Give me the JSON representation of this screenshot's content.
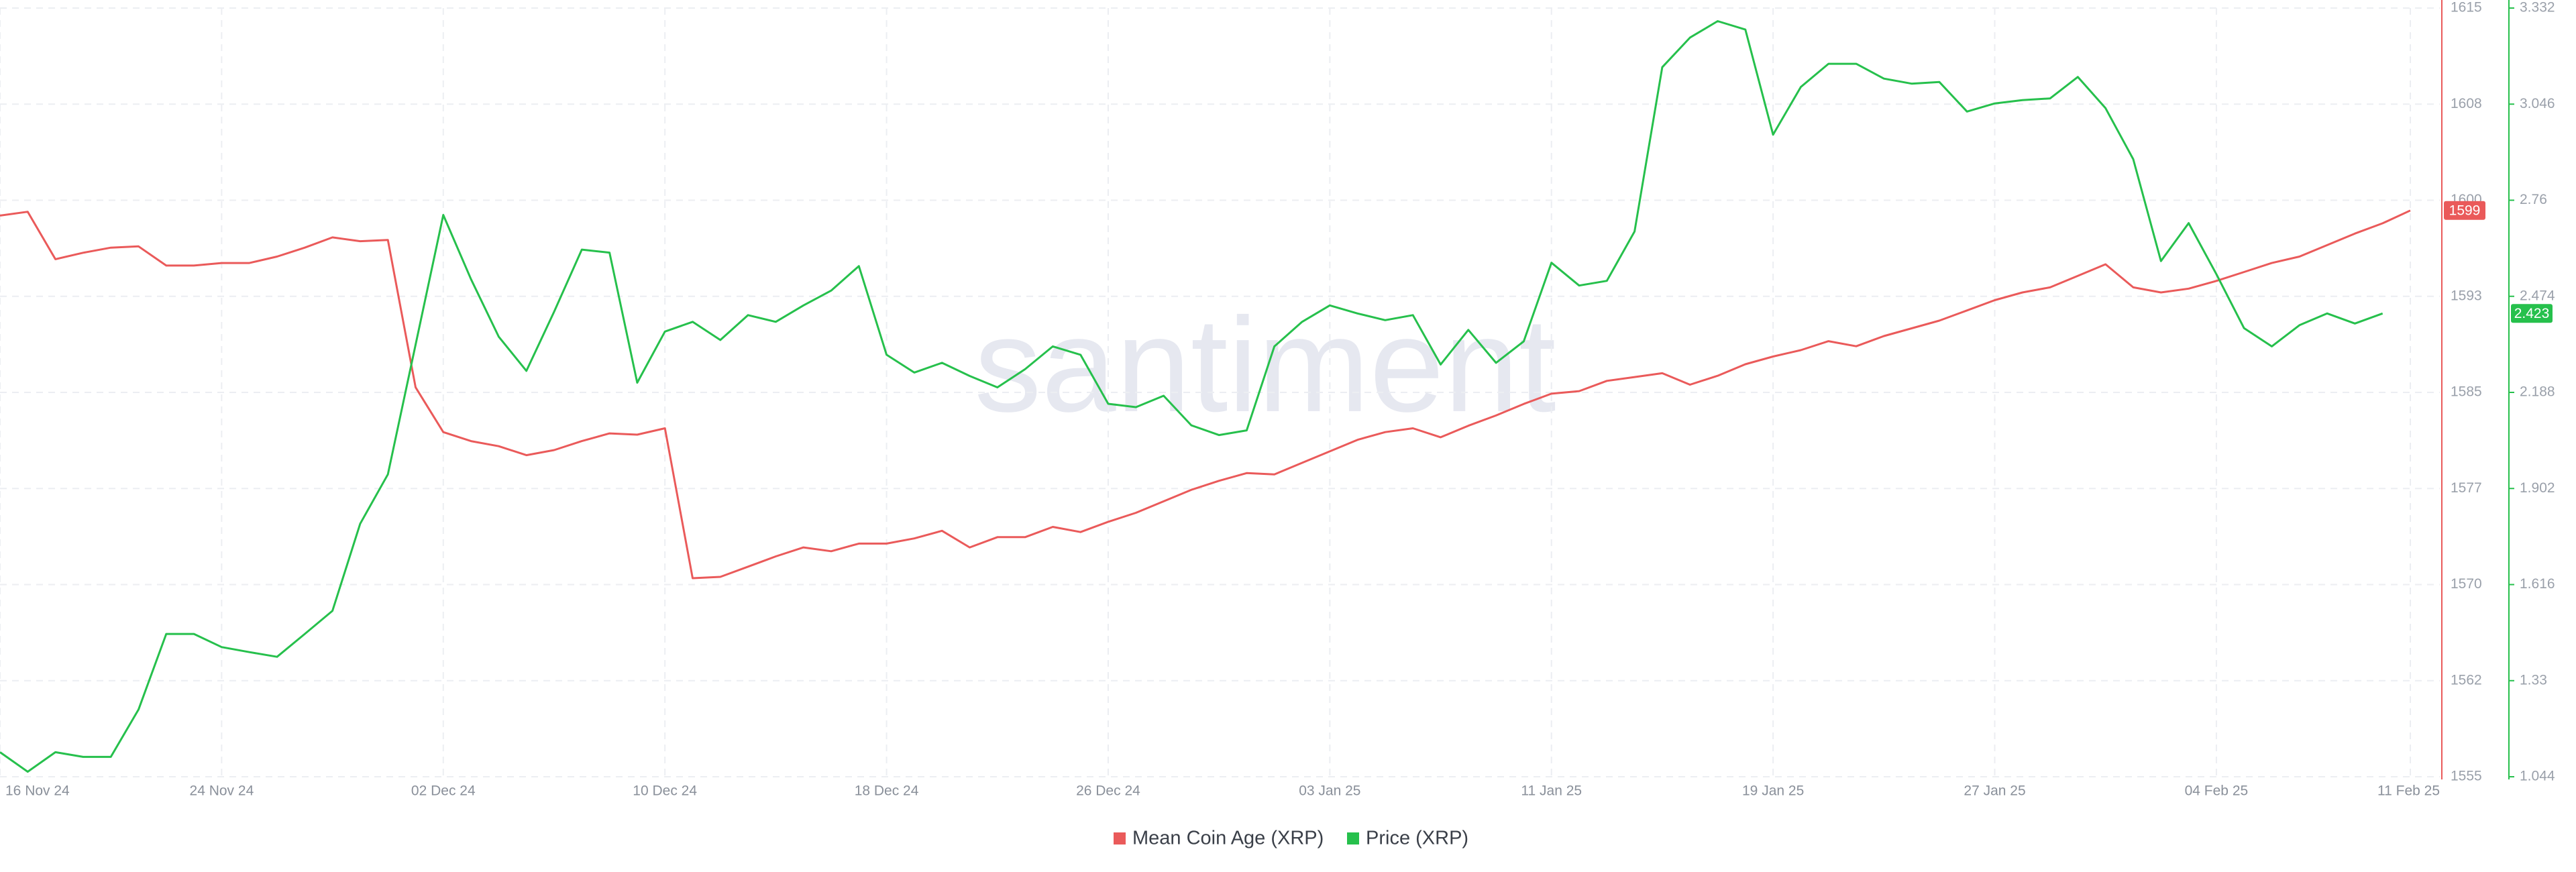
{
  "chart_data": {
    "type": "line",
    "watermark": "santiment",
    "categories": [
      "16 Nov 24",
      null,
      null,
      null,
      null,
      null,
      null,
      null,
      "24 Nov 24",
      null,
      null,
      null,
      null,
      null,
      null,
      null,
      "02 Dec 24",
      null,
      null,
      null,
      null,
      null,
      null,
      null,
      "10 Dec 24",
      null,
      null,
      null,
      null,
      null,
      null,
      null,
      "18 Dec 24",
      null,
      null,
      null,
      null,
      null,
      null,
      null,
      "26 Dec 24",
      null,
      null,
      null,
      null,
      null,
      null,
      null,
      "03 Jan 25",
      null,
      null,
      null,
      null,
      null,
      null,
      null,
      "11 Jan 25",
      null,
      null,
      null,
      null,
      null,
      null,
      null,
      "19 Jan 25",
      null,
      null,
      null,
      null,
      null,
      null,
      null,
      "27 Jan 25",
      null,
      null,
      null,
      null,
      null,
      null,
      null,
      "04 Feb 25",
      null,
      null,
      null,
      null,
      null,
      null,
      "11 Feb 25"
    ],
    "series": [
      {
        "name": "Mean Coin Age (XRP)",
        "color": "#ea5a5a",
        "axis": "y",
        "end_label": "1599",
        "values": [
          1598.8,
          1599.1,
          1595.4,
          1595.9,
          1596.3,
          1596.4,
          1594.9,
          1594.9,
          1595.1,
          1595.1,
          1595.6,
          1596.3,
          1597.1,
          1596.8,
          1596.9,
          1585.4,
          1581.9,
          1581.2,
          1580.8,
          1580.1,
          1580.5,
          1581.2,
          1581.8,
          1581.7,
          1582.2,
          1570.5,
          1570.6,
          1571.4,
          1572.2,
          1572.9,
          1572.6,
          1573.2,
          1573.2,
          1573.6,
          1574.2,
          1572.9,
          1573.7,
          1573.7,
          1574.5,
          1574.1,
          1574.9,
          1575.6,
          1576.5,
          1577.4,
          1578.1,
          1578.7,
          1578.6,
          1579.5,
          1580.4,
          1581.3,
          1581.9,
          1582.2,
          1581.5,
          1582.4,
          1583.2,
          1584.1,
          1584.9,
          1585.1,
          1585.9,
          1586.2,
          1586.5,
          1585.6,
          1586.3,
          1587.2,
          1587.8,
          1588.3,
          1589.0,
          1588.6,
          1589.4,
          1590.0,
          1590.6,
          1591.4,
          1592.2,
          1592.8,
          1593.2,
          1594.1,
          1595.0,
          1593.2,
          1592.8,
          1593.1,
          1593.7,
          1594.4,
          1595.1,
          1595.6,
          1596.5,
          1597.4,
          1598.2,
          1599.2
        ]
      },
      {
        "name": "Price (XRP)",
        "color": "#26c04c",
        "axis": "y2",
        "end_label": "2.423",
        "values": [
          1.117,
          1.059,
          1.117,
          1.103,
          1.103,
          1.244,
          1.469,
          1.469,
          1.43,
          1.415,
          1.401,
          1.469,
          1.538,
          1.797,
          1.944,
          2.33,
          2.716,
          2.525,
          2.354,
          2.252,
          2.428,
          2.613,
          2.604,
          2.217,
          2.369,
          2.398,
          2.344,
          2.418,
          2.398,
          2.447,
          2.491,
          2.564,
          2.3,
          2.247,
          2.276,
          2.237,
          2.203,
          2.257,
          2.325,
          2.3,
          2.154,
          2.144,
          2.178,
          2.09,
          2.061,
          2.075,
          2.325,
          2.398,
          2.447,
          2.423,
          2.403,
          2.418,
          2.271,
          2.374,
          2.276,
          2.34,
          2.574,
          2.506,
          2.52,
          2.667,
          3.156,
          3.244,
          3.293,
          3.268,
          2.955,
          3.097,
          3.166,
          3.166,
          3.122,
          3.107,
          3.112,
          3.024,
          3.048,
          3.058,
          3.063,
          3.127,
          3.034,
          2.882,
          2.579,
          2.692,
          2.54,
          2.379,
          2.325,
          2.388,
          2.423,
          2.393,
          2.423,
          null
        ]
      }
    ],
    "ylim": [
      1555,
      1615
    ],
    "yticks": [
      1615,
      {
        "value": 1607.5,
        "label": "1608"
      },
      1600,
      {
        "value": 1592.5,
        "label": "1593"
      },
      1585,
      {
        "value": 1577.5,
        "label": "1577"
      },
      1570,
      {
        "value": 1562.5,
        "label": "1562"
      },
      1555
    ],
    "y2lim": [
      1.044,
      3.332
    ],
    "y2ticks": [
      3.332,
      3.046,
      2.76,
      2.474,
      2.188,
      1.902,
      1.616,
      1.33,
      1.044
    ],
    "grid": true,
    "legend": "bottom"
  }
}
